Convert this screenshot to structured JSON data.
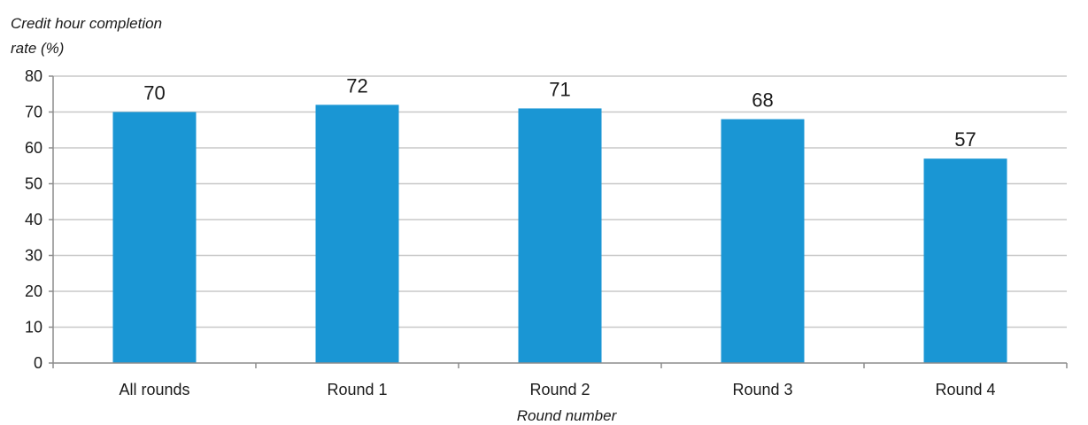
{
  "chart_data": {
    "type": "bar",
    "categories": [
      "All rounds",
      "Round 1",
      "Round 2",
      "Round 3",
      "Round 4"
    ],
    "values": [
      70,
      72,
      71,
      68,
      57
    ],
    "data_labels": [
      "70",
      "72",
      "71",
      "68",
      "57"
    ],
    "title": "",
    "ylabel": "Credit hour completion rate (%)",
    "ylabel_lines": [
      "Credit hour completion",
      "rate (%)"
    ],
    "xlabel": "Round number",
    "ylim": [
      0,
      80
    ],
    "yticks": [
      0,
      10,
      20,
      30,
      40,
      50,
      60,
      70,
      80
    ],
    "ytick_labels": [
      "0",
      "10",
      "20",
      "30",
      "40",
      "50",
      "60",
      "70",
      "80"
    ],
    "grid": "horizontal",
    "legend": "none",
    "bar_color": "#1a96d4",
    "grid_color": "#c8c8c8",
    "axis_color": "#8c8c8c"
  }
}
